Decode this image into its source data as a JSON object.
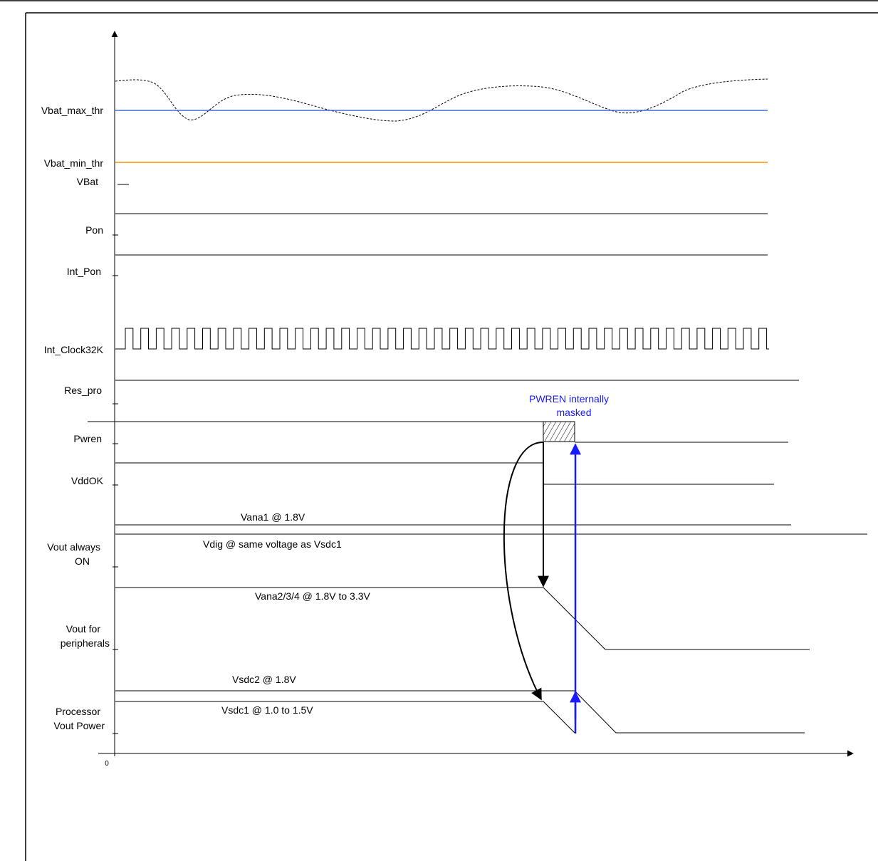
{
  "axis": {
    "origin_label": "0"
  },
  "signals": [
    {
      "id": "vbat_max_thr",
      "label": "Vbat_max_thr",
      "color": "#3a6fd8"
    },
    {
      "id": "vbat_min_thr",
      "label": "Vbat_min_thr",
      "color": "#f39200"
    },
    {
      "id": "vbat",
      "label": "VBat"
    },
    {
      "id": "pon",
      "label": "Pon"
    },
    {
      "id": "int_pon",
      "label": "Int_Pon"
    },
    {
      "id": "int_clock32k",
      "label": "Int_Clock32K"
    },
    {
      "id": "res_pro",
      "label": "Res_pro"
    },
    {
      "id": "pwren",
      "label": "Pwren"
    },
    {
      "id": "vddok",
      "label": "VddOK"
    },
    {
      "id": "vout_always_on",
      "label_line1": "Vout always",
      "label_line2": "ON"
    },
    {
      "id": "vout_peripherals",
      "label_line1": "Vout for",
      "label_line2": "peripherals"
    },
    {
      "id": "processor_vout_power",
      "label_line1": "Processor",
      "label_line2": "Vout  Power"
    }
  ],
  "annotations": {
    "pwren_masked_line1": "PWREN internally",
    "pwren_masked_line2": "masked",
    "vana1": "Vana1 @ 1.8V",
    "vdig": "Vdig @ same voltage as Vsdc1",
    "vana234": "Vana2/3/4 @ 1.8V to 3.3V",
    "vsdc2": "Vsdc2 @ 1.8V",
    "vsdc1": "Vsdc1 @ 1.0 to 1.5V"
  },
  "colors": {
    "blue_arrow": "#1a1aff",
    "text_blue": "#1a1aff"
  }
}
